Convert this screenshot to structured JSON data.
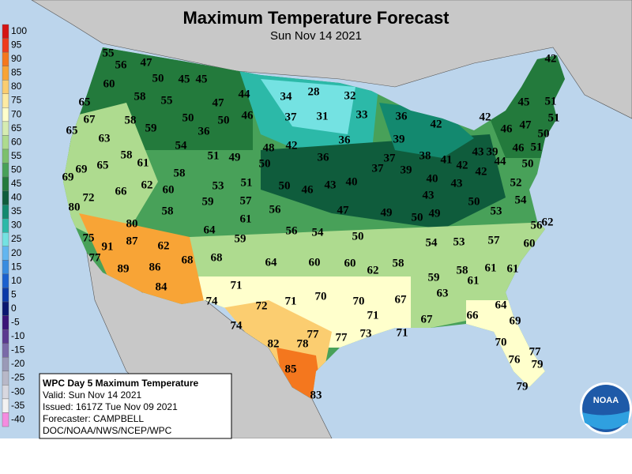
{
  "header": {
    "title": "Maximum Temperature Forecast",
    "subtitle": "Sun Nov 14 2021"
  },
  "legend": {
    "items": [
      {
        "value": 100,
        "color": "#d41414"
      },
      {
        "value": 95,
        "color": "#ee3c1e"
      },
      {
        "value": 90,
        "color": "#f4771e"
      },
      {
        "value": 85,
        "color": "#f8a436"
      },
      {
        "value": 80,
        "color": "#fbcd70"
      },
      {
        "value": 75,
        "color": "#fdeba4"
      },
      {
        "value": 70,
        "color": "#ffffcc"
      },
      {
        "value": 65,
        "color": "#d6ecb2"
      },
      {
        "value": 60,
        "color": "#aedb8f"
      },
      {
        "value": 55,
        "color": "#7cc06e"
      },
      {
        "value": 50,
        "color": "#48a159"
      },
      {
        "value": 45,
        "color": "#237a3c"
      },
      {
        "value": 40,
        "color": "#0f5c3c"
      },
      {
        "value": 35,
        "color": "#13896f"
      },
      {
        "value": 30,
        "color": "#2cb9a8"
      },
      {
        "value": 25,
        "color": "#74e2e2"
      },
      {
        "value": 20,
        "color": "#62b6f0"
      },
      {
        "value": 15,
        "color": "#388ce0"
      },
      {
        "value": 10,
        "color": "#1a60cf"
      },
      {
        "value": 5,
        "color": "#0a3aa8"
      },
      {
        "value": 0,
        "color": "#0a1870"
      },
      {
        "value": -5,
        "color": "#3a1478"
      },
      {
        "value": -10,
        "color": "#5a3a90"
      },
      {
        "value": -15,
        "color": "#7a6aa8"
      },
      {
        "value": -20,
        "color": "#9a9ab8"
      },
      {
        "value": -25,
        "color": "#b8b8c8"
      },
      {
        "value": -30,
        "color": "#d8d8e0"
      },
      {
        "value": -35,
        "color": "#f2f2f2"
      },
      {
        "value": -40,
        "color": "#f48ce0"
      }
    ]
  },
  "info": {
    "lines": [
      "WPC Day 5 Maximum Temperature",
      "Valid: Sun Nov 14 2021",
      "Issued: 1617Z Tue Nov 09 2021",
      "Forecaster: CAMPBELL",
      "DOC/NOAA/NWS/NCEP/WPC"
    ]
  },
  "logo": "NOAA",
  "stations": [
    55,
    56,
    47,
    60,
    50,
    45,
    45,
    65,
    58,
    55,
    47,
    44,
    34,
    28,
    32,
    67,
    58,
    59,
    50,
    50,
    46,
    37,
    31,
    33,
    36,
    42,
    45,
    51,
    42,
    65,
    63,
    36,
    54,
    48,
    42,
    36,
    39,
    42,
    46,
    47,
    50,
    51,
    58,
    61,
    51,
    49,
    50,
    36,
    37,
    38,
    41,
    42,
    43,
    39,
    42,
    44,
    46,
    51,
    50,
    69,
    69,
    65,
    58,
    62,
    60,
    66,
    37,
    39,
    40,
    43,
    52,
    72,
    80,
    53,
    51,
    50,
    46,
    43,
    40,
    43,
    54,
    59,
    57,
    56,
    47,
    49,
    50,
    49,
    50,
    53,
    58,
    80,
    61,
    56,
    62,
    64,
    56,
    54,
    50,
    75,
    91,
    87,
    62,
    59,
    54,
    53,
    57,
    60,
    77,
    68,
    68,
    64,
    60,
    60,
    58,
    62,
    89,
    86,
    59,
    58,
    61,
    61,
    61,
    71,
    84,
    63,
    67,
    70,
    71,
    72,
    74,
    70,
    64,
    71,
    66,
    67,
    74,
    69,
    77,
    77,
    73,
    71,
    78,
    82,
    70,
    77,
    76,
    79,
    85,
    83,
    79
  ]
}
